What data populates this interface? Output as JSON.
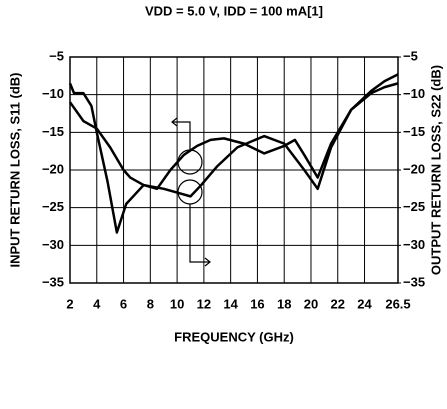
{
  "chart_data": {
    "type": "line",
    "title": "VDD = 5.0 V, IDD = 100 mA[1]",
    "x_label": "FREQUENCY (GHz)",
    "y_label": "INPUT RETURN LOSS, S11 (dB)",
    "y2_label": "OUTPUT RETURN LOSS, S22 (dB)",
    "xlim": [
      2,
      26.5
    ],
    "xticks": [
      2,
      4,
      6,
      8,
      10,
      12,
      14,
      16,
      18,
      20,
      22,
      24,
      26.5
    ],
    "ylim": [
      -35,
      -5
    ],
    "yticks": [
      {
        "value": -35,
        "label": "−35"
      },
      {
        "value": -30,
        "label": "−30"
      },
      {
        "value": -25,
        "label": "−25"
      },
      {
        "value": -20,
        "label": "−20"
      },
      {
        "value": -15,
        "label": "−15"
      },
      {
        "value": -10,
        "label": "−10"
      },
      {
        "value": -5,
        "label": "−5"
      }
    ],
    "y2lim": [
      -35,
      -5
    ],
    "y2ticks": [
      {
        "value": -35,
        "label": "−35"
      },
      {
        "value": -30,
        "label": "−30"
      },
      {
        "value": -25,
        "label": "−25"
      },
      {
        "value": -20,
        "label": "−20"
      },
      {
        "value": -15,
        "label": "−15"
      },
      {
        "value": -10,
        "label": "−10"
      },
      {
        "value": -5,
        "label": "−5"
      }
    ],
    "grid": true,
    "series": [
      {
        "name": "S11",
        "color": "#000000",
        "x": [
          2,
          3,
          4,
          5,
          6,
          6.5,
          7.5,
          8.5,
          9.5,
          10.5,
          11.5,
          12.5,
          13.5,
          15,
          16.5,
          18,
          18.8,
          19.5,
          20.5,
          21.5,
          23,
          24.5,
          25.5,
          26.5
        ],
        "values": [
          -11,
          -13.5,
          -14.5,
          -17,
          -20,
          -21,
          -22,
          -22.5,
          -20,
          -18,
          -16.8,
          -16,
          -15.8,
          -16.5,
          -17.8,
          -16.8,
          -16,
          -18,
          -21,
          -16.5,
          -12,
          -9.8,
          -9,
          -8.5
        ]
      },
      {
        "name": "S22",
        "color": "#000000",
        "axis": "y2",
        "x": [
          2,
          2.3,
          3,
          3.6,
          4,
          4.8,
          5.5,
          6.2,
          7.5,
          9,
          10,
          11,
          11.8,
          13,
          14.5,
          16.5,
          18,
          19.5,
          20.5,
          21.5,
          23,
          24.5,
          25.5,
          26.5
        ],
        "values": [
          -8.5,
          -9.8,
          -9.8,
          -11.5,
          -15,
          -21.5,
          -28.3,
          -24.5,
          -22,
          -22.5,
          -23,
          -23.5,
          -22,
          -19.5,
          -17,
          -15.5,
          -16.5,
          -20,
          -22.5,
          -17,
          -12,
          -9.5,
          -8.2,
          -7.3
        ]
      }
    ]
  }
}
